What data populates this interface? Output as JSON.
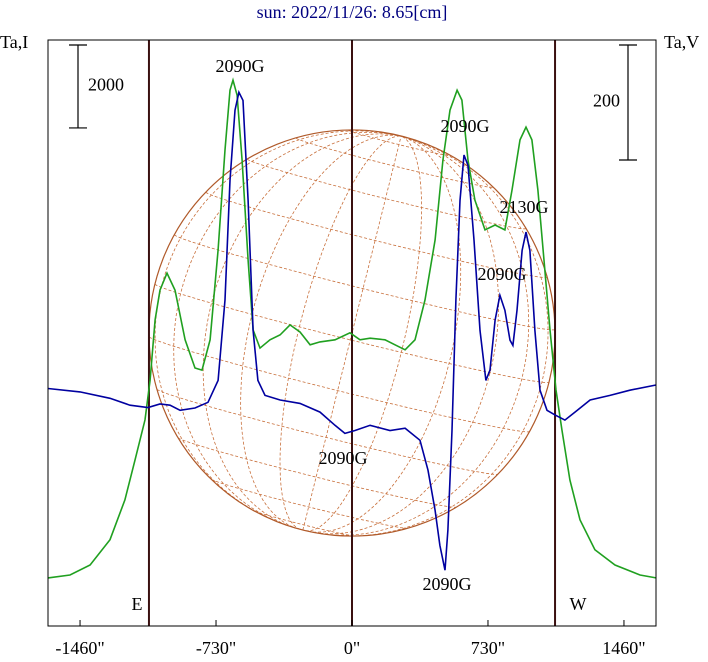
{
  "chart_data": {
    "type": "line",
    "title": "sun: 2022/11/26: 8.65[cm]",
    "ylabel": "Ta,I",
    "y2label": "Ta,V",
    "xlim": [
      -1632,
      1632
    ],
    "xticks": [
      {
        "value": -1460,
        "label": "-1460\""
      },
      {
        "value": -730,
        "label": "-730\""
      },
      {
        "value": 0,
        "label": "0\""
      },
      {
        "value": 730,
        "label": "730\""
      },
      {
        "value": 1460,
        "label": "1460\""
      }
    ],
    "ylim": [
      -1160,
      12970
    ],
    "y2lim": [
      -410,
      609
    ],
    "y_scale_bar": 2000,
    "y2_scale_bar": 200,
    "vlines": [
      -1090,
      0,
      1090
    ],
    "series": [
      {
        "name": "Ta,I",
        "color": "#20a020",
        "axis": "y",
        "x": [
          -1632,
          -1514,
          -1406,
          -1299,
          -1219,
          -1165,
          -1111,
          -1084,
          -1057,
          -1031,
          -993,
          -950,
          -896,
          -843,
          -805,
          -762,
          -719,
          -682,
          -655,
          -639,
          -617,
          -590,
          -558,
          -531,
          -494,
          -440,
          -386,
          -333,
          -279,
          -225,
          -172,
          -91,
          -11,
          43,
          97,
          177,
          231,
          285,
          338,
          392,
          446,
          488,
          526,
          564,
          590,
          623,
          660,
          714,
          768,
          821,
          859,
          902,
          934,
          966,
          998,
          1031,
          1063,
          1095,
          1127,
          1170,
          1224,
          1304,
          1412,
          1546,
          1632
        ],
        "values": [
          0,
          70,
          310,
          920,
          1880,
          2840,
          3810,
          4770,
          6220,
          6940,
          7350,
          6940,
          5740,
          5060,
          5010,
          5740,
          7910,
          10320,
          11760,
          12000,
          11640,
          10070,
          7660,
          5980,
          5540,
          5740,
          5860,
          6100,
          5930,
          5620,
          5690,
          5740,
          5910,
          5740,
          5780,
          5740,
          5620,
          5500,
          5740,
          6700,
          8150,
          10070,
          11280,
          11760,
          11520,
          10070,
          9110,
          8390,
          8510,
          8390,
          9350,
          10560,
          10870,
          10560,
          9350,
          7660,
          5980,
          4530,
          3570,
          2360,
          1400,
          680,
          310,
          70,
          0
        ]
      },
      {
        "name": "Ta,V",
        "color": "#0000a0",
        "axis": "y2",
        "x": [
          -1632,
          -1460,
          -1299,
          -1192,
          -1095,
          -1031,
          -977,
          -923,
          -843,
          -773,
          -719,
          -682,
          -655,
          -628,
          -607,
          -585,
          -558,
          -531,
          -505,
          -467,
          -386,
          -279,
          -172,
          -91,
          -38,
          16,
          97,
          204,
          285,
          365,
          408,
          446,
          472,
          499,
          515,
          537,
          558,
          580,
          601,
          623,
          655,
          687,
          719,
          741,
          768,
          794,
          821,
          848,
          864,
          886,
          913,
          934,
          955,
          982,
          1009,
          1047,
          1090,
          1143,
          1197,
          1278,
          1385,
          1492,
          1632
        ],
        "values": [
          3,
          -3,
          -14,
          -26,
          -30,
          -24,
          -26,
          -35,
          -31,
          -21,
          17,
          157,
          365,
          487,
          518,
          504,
          330,
          104,
          17,
          -9,
          -17,
          -23,
          -38,
          -61,
          -75,
          -70,
          -61,
          -70,
          -66,
          -87,
          -139,
          -209,
          -270,
          -313,
          -243,
          -70,
          157,
          330,
          409,
          391,
          261,
          104,
          17,
          35,
          122,
          165,
          139,
          87,
          78,
          139,
          243,
          275,
          243,
          104,
          0,
          -35,
          -43,
          -52,
          -38,
          -17,
          -9,
          0,
          9
        ]
      }
    ],
    "annotations": [
      "2090G",
      "2090G",
      "2130G",
      "2090G",
      "2090G",
      "2090G",
      "E",
      "W"
    ]
  }
}
